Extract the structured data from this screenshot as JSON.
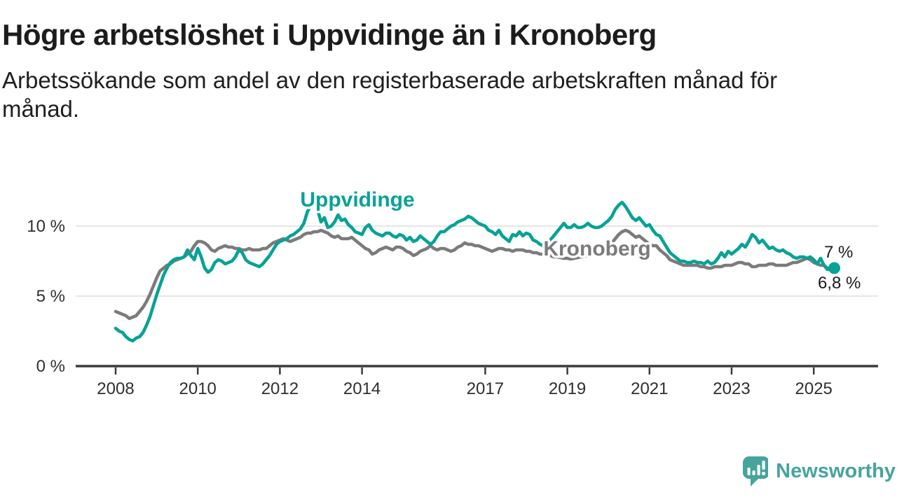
{
  "header": {
    "title": "Högre arbetslöshet i Uppvidinge än i Kronoberg",
    "subtitle_line1": "Arbetssökande som andel av den registerbaserade arbetskraften månad för",
    "subtitle_line2": "månad."
  },
  "chart_data": {
    "type": "line",
    "unit": "%",
    "x_start_year": 2008,
    "x_interval": "monthly",
    "x_end": "2025-07",
    "ylim": [
      0,
      14
    ],
    "grid": "horizontal",
    "yticks": [
      {
        "value": 0,
        "label": "0 %"
      },
      {
        "value": 5,
        "label": "5 %"
      },
      {
        "value": 10,
        "label": "10 %"
      }
    ],
    "xticks": [
      {
        "year": 2008,
        "label": "2008"
      },
      {
        "year": 2010,
        "label": "2010"
      },
      {
        "year": 2012,
        "label": "2012"
      },
      {
        "year": 2014,
        "label": "2014"
      },
      {
        "year": 2017,
        "label": "2017"
      },
      {
        "year": 2019,
        "label": "2019"
      },
      {
        "year": 2021,
        "label": "2021"
      },
      {
        "year": 2023,
        "label": "2023"
      },
      {
        "year": 2025,
        "label": "2025"
      }
    ],
    "series": [
      {
        "name": "Kronoberg",
        "label": "Kronoberg",
        "color": "#7b7b7b",
        "end_label": "6,8 %",
        "end_value": 6.8,
        "values": [
          3.9,
          3.8,
          3.7,
          3.6,
          3.4,
          3.5,
          3.6,
          3.9,
          4.2,
          4.6,
          5.1,
          5.7,
          6.3,
          6.8,
          7.0,
          7.2,
          7.3,
          7.5,
          7.6,
          7.7,
          7.8,
          8.0,
          8.2,
          8.6,
          8.9,
          8.9,
          8.8,
          8.6,
          8.3,
          8.2,
          8.4,
          8.5,
          8.6,
          8.5,
          8.5,
          8.4,
          8.4,
          8.3,
          8.3,
          8.4,
          8.3,
          8.3,
          8.3,
          8.4,
          8.4,
          8.6,
          8.8,
          8.9,
          9.0,
          9.1,
          9.0,
          8.9,
          9.0,
          9.1,
          9.2,
          9.4,
          9.5,
          9.5,
          9.6,
          9.6,
          9.7,
          9.6,
          9.5,
          9.3,
          9.2,
          9.3,
          9.1,
          9.1,
          9.1,
          9.2,
          9.0,
          8.8,
          8.6,
          8.4,
          8.3,
          8.0,
          8.1,
          8.3,
          8.4,
          8.5,
          8.4,
          8.3,
          8.5,
          8.5,
          8.4,
          8.2,
          8.1,
          7.9,
          8.0,
          8.2,
          8.3,
          8.4,
          8.6,
          8.4,
          8.3,
          8.4,
          8.4,
          8.3,
          8.2,
          8.3,
          8.5,
          8.6,
          8.8,
          8.7,
          8.7,
          8.6,
          8.6,
          8.5,
          8.4,
          8.3,
          8.2,
          8.3,
          8.4,
          8.4,
          8.3,
          8.3,
          8.2,
          8.3,
          8.3,
          8.3,
          8.2,
          8.2,
          8.1,
          8.1,
          8.0,
          8.0,
          7.9,
          7.9,
          7.8,
          7.8,
          7.75,
          7.7,
          7.7,
          7.65,
          7.7,
          7.75,
          7.8,
          7.85,
          7.9,
          8.0,
          8.05,
          8.1,
          8.2,
          8.3,
          8.5,
          8.8,
          9.1,
          9.4,
          9.6,
          9.7,
          9.6,
          9.4,
          9.2,
          9.3,
          9.1,
          8.9,
          8.7,
          8.6,
          8.6,
          8.3,
          8.1,
          7.9,
          7.6,
          7.5,
          7.4,
          7.3,
          7.2,
          7.2,
          7.2,
          7.2,
          7.2,
          7.1,
          7.1,
          7.0,
          7.0,
          7.1,
          7.1,
          7.1,
          7.2,
          7.2,
          7.2,
          7.3,
          7.4,
          7.4,
          7.3,
          7.3,
          7.1,
          7.1,
          7.2,
          7.2,
          7.2,
          7.3,
          7.3,
          7.2,
          7.2,
          7.2,
          7.2,
          7.3,
          7.4,
          7.4,
          7.5,
          7.6,
          7.7,
          7.6,
          7.4,
          7.3,
          7.2,
          7.2,
          7.0,
          6.9,
          6.8
        ]
      },
      {
        "name": "Uppvidinge",
        "label": "Uppvidinge",
        "color": "#07a296",
        "end_label": "7 %",
        "end_value": 7.0,
        "end_dot": true,
        "values": [
          2.7,
          2.5,
          2.4,
          2.1,
          1.9,
          1.8,
          2.0,
          2.1,
          2.4,
          2.9,
          3.5,
          4.3,
          5.1,
          5.8,
          6.5,
          7.0,
          7.4,
          7.6,
          7.7,
          7.7,
          7.8,
          8.3,
          7.9,
          7.6,
          8.4,
          7.8,
          7.0,
          6.7,
          6.9,
          7.4,
          7.6,
          7.5,
          7.3,
          7.4,
          7.5,
          7.8,
          8.3,
          8.1,
          7.6,
          7.4,
          7.3,
          7.2,
          7.1,
          7.3,
          7.6,
          7.9,
          8.3,
          8.7,
          8.9,
          9.0,
          9.1,
          9.3,
          9.4,
          9.6,
          9.8,
          10.2,
          11.0,
          11.5,
          11.8,
          11.2,
          10.3,
          10.6,
          9.9,
          10.0,
          10.3,
          10.8,
          10.4,
          10.5,
          10.1,
          9.9,
          9.6,
          9.5,
          9.4,
          9.9,
          10.1,
          9.7,
          9.5,
          9.4,
          9.3,
          9.5,
          9.5,
          9.3,
          9.2,
          9.4,
          9.3,
          9.0,
          9.2,
          8.9,
          9.0,
          9.3,
          9.1,
          8.9,
          8.7,
          8.9,
          9.3,
          9.6,
          9.6,
          9.8,
          10.0,
          10.1,
          10.3,
          10.4,
          10.5,
          10.7,
          10.6,
          10.4,
          10.2,
          10.1,
          10.0,
          9.7,
          9.6,
          9.4,
          9.7,
          9.3,
          9.1,
          8.9,
          9.4,
          9.3,
          9.6,
          9.3,
          9.5,
          9.4,
          9.0,
          8.9,
          8.7,
          8.6,
          8.7,
          9.0,
          9.3,
          9.6,
          9.9,
          10.2,
          9.9,
          9.9,
          10.1,
          9.9,
          9.9,
          10.0,
          10.2,
          10.0,
          9.9,
          9.9,
          10.0,
          10.2,
          10.4,
          10.7,
          11.2,
          11.5,
          11.7,
          11.4,
          11.0,
          10.6,
          10.4,
          10.6,
          10.3,
          10.0,
          10.1,
          9.7,
          9.4,
          9.3,
          8.9,
          8.5,
          8.1,
          7.9,
          7.7,
          7.5,
          7.5,
          7.4,
          7.4,
          7.5,
          7.4,
          7.4,
          7.3,
          7.5,
          7.3,
          7.4,
          7.7,
          8.1,
          7.8,
          8.2,
          8.0,
          8.2,
          8.4,
          8.7,
          8.5,
          8.9,
          9.4,
          9.2,
          8.8,
          9.0,
          8.7,
          8.4,
          8.5,
          8.3,
          8.2,
          8.3,
          8.1,
          8.0,
          7.8,
          7.7,
          7.8,
          7.8,
          7.7,
          7.8,
          7.6,
          7.3,
          7.7,
          7.2,
          6.9,
          6.9,
          7.0
        ]
      }
    ]
  },
  "footer": {
    "brand": "Newsworthy"
  }
}
